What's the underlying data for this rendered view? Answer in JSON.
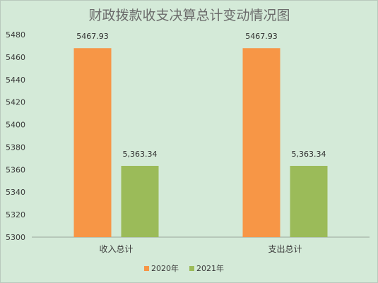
{
  "chart_data": {
    "type": "bar",
    "title": "财政拨款收支决算总计变动情况图",
    "categories": [
      "收入总计",
      "支出总计"
    ],
    "series": [
      {
        "name": "2020年",
        "values": [
          5467.93,
          5467.93
        ],
        "labels": [
          "5467.93",
          "5467.93"
        ],
        "color": "#f79646"
      },
      {
        "name": "2021年",
        "values": [
          5363.34,
          5363.34
        ],
        "labels": [
          "5,363.34",
          "5,363.34"
        ],
        "color": "#9bbb59"
      }
    ],
    "ylim": [
      5300,
      5480
    ],
    "yticks": [
      "5300",
      "5320",
      "5340",
      "5360",
      "5380",
      "5400",
      "5420",
      "5440",
      "5460",
      "5480"
    ],
    "xlabel": "",
    "ylabel": "",
    "grid": false,
    "legend_position": "bottom"
  }
}
